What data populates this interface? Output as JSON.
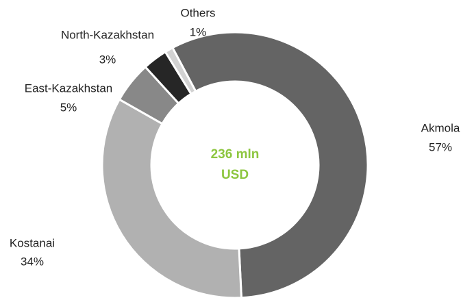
{
  "chart_data": {
    "type": "pie",
    "labels": [
      "Akmola",
      "Kostanai",
      "East-Kazakhstan",
      "North-Kazakhstan",
      "Others"
    ],
    "values": [
      57,
      34,
      5,
      3,
      1
    ],
    "value_labels": [
      "57%",
      "34%",
      "5%",
      "3%",
      "1%"
    ],
    "colors": [
      "#646464",
      "#b1b1b1",
      "#888888",
      "#262626",
      "#d2d2d2"
    ],
    "center_text": [
      "236 mln",
      "USD"
    ],
    "center_color": "#8dc63f"
  }
}
